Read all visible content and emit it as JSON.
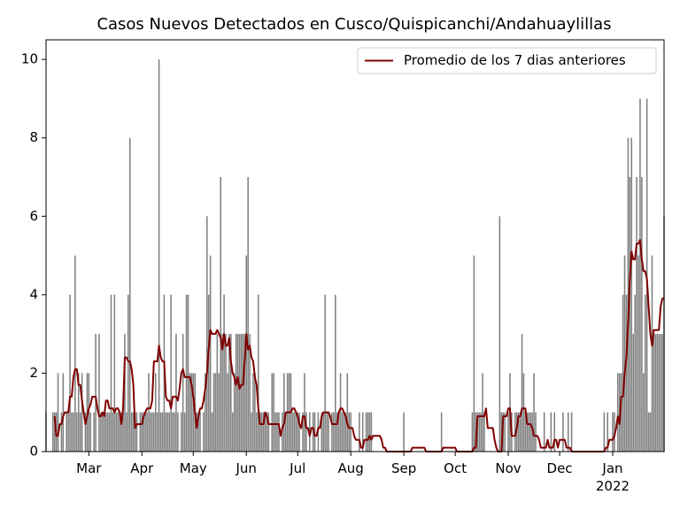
{
  "chart_data": {
    "type": "bar",
    "title": "Casos Nuevos Detectados en Cusco/Quispicanchi/Andahuaylillas",
    "color": "#808080",
    "x": [
      0,
      1,
      2,
      3,
      4,
      5,
      6,
      7,
      8,
      9,
      10,
      11,
      12,
      13,
      14,
      15,
      16,
      17,
      18,
      19,
      20,
      21,
      22,
      23,
      24,
      25,
      26,
      27,
      28,
      29,
      30,
      31,
      32,
      33,
      34,
      35,
      36,
      37,
      38,
      39,
      40,
      41,
      42,
      43,
      44,
      45,
      46,
      47,
      48,
      49,
      50,
      51,
      52,
      53,
      54,
      55,
      56,
      57,
      58,
      59,
      60,
      61,
      62,
      63,
      64,
      65,
      66,
      67,
      68,
      69,
      70,
      71,
      72,
      73,
      74,
      75,
      76,
      77,
      78,
      79,
      80,
      81,
      82,
      83,
      84,
      85,
      86,
      87,
      88,
      89,
      90,
      91,
      92,
      93,
      94,
      95,
      96,
      97,
      98,
      99,
      100,
      101,
      102,
      103,
      104,
      105,
      106,
      107,
      108,
      109,
      110,
      111,
      112,
      113,
      114,
      115,
      116,
      117,
      118,
      119,
      120,
      121,
      122,
      123,
      124,
      125,
      126,
      127,
      128,
      129,
      130,
      131,
      132,
      133,
      134,
      135,
      136,
      137,
      138,
      139,
      140,
      141,
      142,
      143,
      144,
      145,
      146,
      147,
      148,
      149,
      150,
      151,
      152,
      153,
      154,
      155,
      156,
      157,
      158,
      159,
      160,
      161,
      162,
      163,
      164,
      165,
      166,
      167,
      168,
      169,
      170,
      171,
      172,
      173,
      174,
      175,
      176,
      177,
      178,
      179,
      180,
      181,
      182,
      183,
      184,
      185,
      186,
      187,
      188,
      189,
      190,
      191,
      192,
      193,
      194,
      195,
      196,
      197,
      198,
      199,
      200,
      201,
      202,
      203,
      204,
      205,
      206,
      207,
      208,
      209,
      210,
      211,
      212,
      213,
      214,
      215,
      216,
      217,
      218,
      219,
      220,
      221,
      222,
      223,
      224,
      225,
      226,
      227,
      228,
      229,
      230,
      231,
      232,
      233,
      234,
      235,
      236,
      237,
      238,
      239,
      240,
      241,
      242,
      243,
      244,
      245,
      246,
      247,
      248,
      249,
      250,
      251,
      252,
      253,
      254,
      255,
      256,
      257,
      258,
      259,
      260,
      261,
      262,
      263,
      264,
      265,
      266,
      267,
      268,
      269,
      270,
      271,
      272,
      273,
      274,
      275,
      276,
      277,
      278,
      279,
      280,
      281,
      282,
      283,
      284,
      285,
      286,
      287,
      288,
      289,
      290,
      291,
      292,
      293,
      294,
      295,
      296,
      297,
      298,
      299,
      300,
      301,
      302,
      303,
      304,
      305,
      306,
      307,
      308,
      309,
      310,
      311,
      312,
      313,
      314,
      315,
      316,
      317,
      318,
      319,
      320,
      321,
      322,
      323,
      324,
      325,
      326,
      327,
      328,
      329,
      330,
      331,
      332,
      333,
      334,
      335,
      336,
      337,
      338,
      339,
      340,
      341,
      342,
      343,
      344,
      345,
      346,
      347,
      348,
      349,
      350,
      351,
      352,
      353,
      354,
      355,
      356,
      357,
      358,
      359,
      360,
      361
    ],
    "values": [
      1,
      0,
      0,
      0,
      1,
      1,
      1,
      2,
      0,
      1,
      2,
      0,
      1,
      1,
      4,
      1,
      1,
      5,
      1,
      2,
      1,
      2,
      0,
      1,
      2,
      2,
      1,
      0,
      1,
      3,
      0,
      3,
      1,
      1,
      1,
      1,
      1,
      1,
      4,
      1,
      4,
      1,
      1,
      1,
      1,
      1,
      3,
      1,
      4,
      8,
      1,
      1,
      1,
      1,
      0,
      1,
      1,
      1,
      1,
      1,
      2,
      1,
      1,
      1,
      2,
      1,
      10,
      1,
      1,
      4,
      1,
      1,
      1,
      4,
      1,
      1,
      3,
      1,
      0,
      1,
      3,
      1,
      4,
      4,
      2,
      2,
      2,
      2,
      1,
      1,
      1,
      0,
      1,
      2,
      6,
      4,
      5,
      1,
      2,
      2,
      3,
      2,
      7,
      3,
      4,
      3,
      2,
      3,
      3,
      1,
      2,
      3,
      3,
      3,
      3,
      3,
      3,
      5,
      7,
      3,
      1,
      2,
      2,
      1,
      4,
      1,
      1,
      1,
      1,
      1,
      1,
      0,
      2,
      2,
      1,
      1,
      1,
      0,
      1,
      2,
      1,
      2,
      2,
      2,
      1,
      1,
      1,
      1,
      1,
      0,
      1,
      2,
      1,
      0,
      1,
      0,
      1,
      1,
      0,
      1,
      0,
      1,
      1,
      4,
      1,
      1,
      0,
      1,
      1,
      4,
      1,
      1,
      2,
      1,
      1,
      1,
      2,
      1,
      1,
      0,
      0,
      0,
      0,
      1,
      0,
      1,
      0,
      1,
      1,
      1,
      1,
      0,
      0,
      0,
      0,
      0,
      0,
      0,
      0,
      0,
      0,
      0,
      0,
      0,
      0,
      0,
      0,
      0,
      0,
      1,
      0,
      0,
      0,
      0,
      0,
      0,
      0,
      0,
      0,
      0,
      0,
      0,
      0,
      0,
      0,
      0,
      0,
      0,
      0,
      0,
      0,
      1,
      0,
      0,
      0,
      0,
      0,
      0,
      0,
      0,
      0,
      0,
      0,
      0,
      0,
      0,
      0,
      0,
      0,
      1,
      5,
      1,
      1,
      1,
      1,
      2,
      1,
      0,
      0,
      0,
      0,
      0,
      0,
      0,
      0,
      6,
      1,
      1,
      1,
      0,
      1,
      2,
      1,
      0,
      1,
      1,
      1,
      1,
      3,
      2,
      1,
      1,
      1,
      1,
      1,
      2,
      1,
      0,
      0,
      0,
      0,
      1,
      0,
      0,
      0,
      1,
      0,
      1,
      0,
      0,
      0,
      0,
      1,
      0,
      0,
      1,
      0,
      1,
      0,
      0,
      0,
      0,
      0,
      0,
      0,
      0,
      0,
      0,
      0,
      0,
      0,
      0,
      0,
      0,
      0,
      0,
      1,
      0,
      1,
      0,
      0,
      1,
      1,
      0,
      2,
      2,
      2,
      4,
      5,
      4,
      8,
      7,
      8,
      3,
      4,
      7,
      5,
      9,
      7,
      2,
      4,
      9,
      1,
      1,
      5,
      3,
      3,
      3,
      3,
      3,
      3,
      6
    ],
    "series": [
      {
        "name": "Promedio de los 7 dias anteriores",
        "color": "#800000",
        "type": "line",
        "values": [
          null,
          null,
          null,
          null,
          null,
          0.9,
          0.4,
          0.4,
          0.7,
          0.7,
          0.9,
          1.0,
          1.0,
          1.0,
          1.4,
          1.4,
          1.9,
          2.1,
          2.1,
          1.7,
          1.7,
          1.3,
          1.0,
          0.7,
          0.9,
          1.1,
          1.2,
          1.4,
          1.4,
          1.4,
          1.1,
          0.9,
          0.9,
          1.0,
          0.9,
          1.3,
          1.3,
          1.1,
          1.1,
          1.1,
          1.0,
          1.1,
          1.1,
          1.0,
          0.7,
          1.1,
          2.4,
          2.4,
          2.3,
          2.3,
          2.1,
          1.7,
          0.6,
          0.7,
          0.7,
          0.7,
          0.7,
          0.9,
          1.0,
          1.1,
          1.1,
          1.1,
          1.3,
          2.3,
          2.3,
          2.3,
          2.7,
          2.4,
          2.3,
          2.3,
          1.4,
          1.3,
          1.3,
          1.1,
          1.4,
          1.4,
          1.4,
          1.3,
          1.6,
          2.0,
          2.1,
          1.9,
          1.9,
          1.9,
          1.9,
          1.7,
          1.4,
          1.0,
          0.6,
          0.9,
          1.1,
          1.1,
          1.3,
          1.6,
          2.0,
          2.6,
          3.1,
          3.0,
          3.0,
          3.0,
          3.1,
          3.0,
          2.9,
          2.6,
          3.0,
          2.7,
          2.7,
          2.9,
          2.3,
          2.0,
          1.9,
          1.7,
          1.9,
          1.6,
          1.7,
          1.7,
          2.3,
          3.0,
          2.6,
          2.7,
          2.4,
          2.3,
          1.9,
          1.7,
          1.1,
          0.7,
          0.7,
          0.7,
          1.0,
          0.9,
          0.7,
          0.7,
          0.7,
          0.7,
          0.7,
          0.7,
          0.7,
          0.4,
          0.6,
          0.7,
          1.0,
          1.0,
          1.0,
          1.0,
          1.1,
          1.1,
          1.0,
          0.9,
          0.7,
          0.6,
          0.9,
          0.9,
          0.6,
          0.6,
          0.4,
          0.6,
          0.6,
          0.4,
          0.4,
          0.6,
          0.6,
          0.9,
          1.0,
          1.0,
          1.0,
          1.0,
          0.9,
          0.7,
          0.7,
          0.7,
          0.7,
          1.0,
          1.1,
          1.1,
          1.0,
          0.9,
          0.7,
          0.6,
          0.6,
          0.6,
          0.4,
          0.3,
          0.3,
          0.3,
          0.1,
          0.1,
          0.3,
          0.3,
          0.3,
          0.4,
          0.3,
          0.4,
          0.4,
          0.4,
          0.4,
          0.4,
          0.3,
          0.1,
          0.1,
          0,
          0,
          0,
          0,
          0,
          0,
          0,
          0,
          0,
          0,
          0,
          0,
          0,
          0,
          0,
          0.1,
          0.1,
          0.1,
          0.1,
          0.1,
          0.1,
          0.1,
          0.1,
          0,
          0,
          0,
          0,
          0,
          0,
          0,
          0,
          0,
          0,
          0.1,
          0.1,
          0.1,
          0.1,
          0.1,
          0.1,
          0.1,
          0.1,
          0,
          0,
          0,
          0,
          0,
          0,
          0,
          0,
          0,
          0,
          0.1,
          0.1,
          0.9,
          0.9,
          0.9,
          0.9,
          0.9,
          1.1,
          0.6,
          0.6,
          0.6,
          0.6,
          0.3,
          0.1,
          0,
          0,
          0,
          0.9,
          0.9,
          0.9,
          1.1,
          1.1,
          0.4,
          0.4,
          0.4,
          0.6,
          0.9,
          0.9,
          1.1,
          1.1,
          1.1,
          0.7,
          0.7,
          0.7,
          0.6,
          0.4,
          0.4,
          0.4,
          0.3,
          0.1,
          0.1,
          0.1,
          0.1,
          0.3,
          0.1,
          0.1,
          0.1,
          0.3,
          0.3,
          0.1,
          0.3,
          0.3,
          0.3,
          0.3,
          0.1,
          0.1,
          0.1,
          0,
          0,
          0,
          0,
          0,
          0,
          0,
          0,
          0,
          0,
          0,
          0,
          0,
          0,
          0,
          0,
          0,
          0,
          0,
          0,
          0.1,
          0.1,
          0.3,
          0.3,
          0.3,
          0.4,
          0.6,
          0.9,
          0.7,
          1.4,
          1.4,
          2.0,
          2.4,
          3.3,
          4.4,
          5.1,
          4.9,
          4.9,
          5.3,
          5.3,
          5.4,
          4.9,
          4.6,
          4.6,
          4.4,
          3.7,
          3.0,
          2.7,
          3.1,
          3.1,
          3.1,
          3.1,
          3.7,
          3.9,
          3.9
        ]
      }
    ],
    "xlim": [
      0,
      361
    ],
    "xticks": [
      {
        "value": 25,
        "label": "Mar"
      },
      {
        "value": 56,
        "label": "Apr"
      },
      {
        "value": 86,
        "label": "May"
      },
      {
        "value": 117,
        "label": "Jun"
      },
      {
        "value": 147,
        "label": "Jul"
      },
      {
        "value": 178,
        "label": "Aug"
      },
      {
        "value": 209,
        "label": "Sep"
      },
      {
        "value": 239,
        "label": "Oct"
      },
      {
        "value": 270,
        "label": "Nov"
      },
      {
        "value": 300,
        "label": "Dec"
      },
      {
        "value": 331,
        "label": "Jan\n2022"
      }
    ],
    "ylim": [
      0,
      10.5
    ],
    "yticks": [
      0,
      2,
      4,
      6,
      8,
      10
    ],
    "legend": "upper right"
  }
}
